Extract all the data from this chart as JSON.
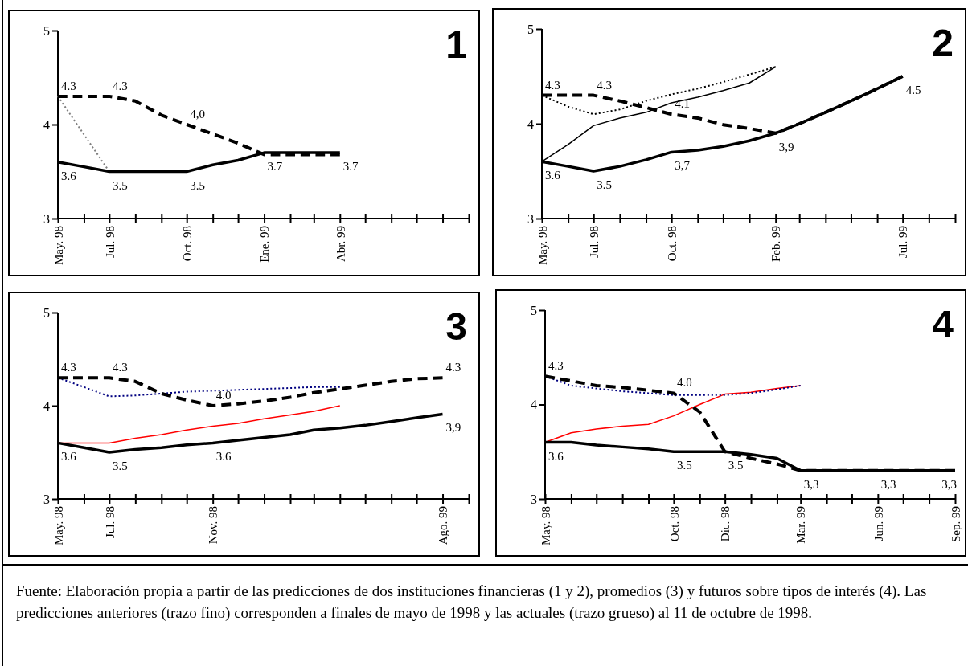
{
  "chart_data": [
    {
      "type": "line",
      "title": "1",
      "xlim": [
        "1998-05",
        "1999-09"
      ],
      "ylim": [
        3,
        5
      ],
      "yticks": [
        3,
        4,
        5
      ],
      "xticks": [
        {
          "value": "1998-05",
          "label": "May. 98"
        },
        {
          "value": "1998-06",
          "label": null
        },
        {
          "value": "1998-07",
          "label": "Jul. 98"
        },
        {
          "value": "1998-08",
          "label": null
        },
        {
          "value": "1998-09",
          "label": null
        },
        {
          "value": "1998-10",
          "label": "Oct. 98"
        },
        {
          "value": "1998-11",
          "label": null
        },
        {
          "value": "1998-12",
          "label": null
        },
        {
          "value": "1999-01",
          "label": "Ene. 99"
        },
        {
          "value": "1999-02",
          "label": null
        },
        {
          "value": "1999-03",
          "label": null
        },
        {
          "value": "1999-04",
          "label": "Abr. 99"
        },
        {
          "value": "1999-05",
          "label": null
        },
        {
          "value": "1999-06",
          "label": null
        },
        {
          "value": "1999-07",
          "label": null
        },
        {
          "value": "1999-08",
          "label": null
        },
        {
          "value": "1999-09",
          "label": null
        }
      ],
      "grid": false,
      "marker": "none",
      "series": [
        {
          "color": "#808080",
          "line_style": "dotted",
          "x": [
            "1998-05",
            "1998-07"
          ],
          "values": [
            4.3,
            3.5
          ]
        },
        {
          "color": "#000000",
          "line_style": "solid",
          "x": [
            "1998-05",
            "1998-06",
            "1998-07",
            "1998-08",
            "1998-09",
            "1998-10",
            "1998-11",
            "1998-12",
            "1999-01",
            "1999-02",
            "1999-03",
            "1999-04"
          ],
          "values": [
            3.6,
            3.55,
            3.5,
            3.5,
            3.5,
            3.5,
            3.57,
            3.62,
            3.7,
            3.7,
            3.7,
            3.7
          ]
        },
        {
          "color": "#000000",
          "line_style": "dashed",
          "x": [
            "1998-05",
            "1998-06",
            "1998-07",
            "1998-08",
            "1998-09",
            "1998-10",
            "1998-11",
            "1998-12",
            "1999-01",
            "1999-02",
            "1999-03",
            "1999-04"
          ],
          "values": [
            4.3,
            4.3,
            4.3,
            4.25,
            4.1,
            4.0,
            3.9,
            3.8,
            3.68,
            3.68,
            3.68,
            3.68
          ]
        }
      ],
      "annotations": [
        {
          "text": "4.3",
          "x": "1998-05",
          "y": 4.3
        },
        {
          "text": "4.3",
          "x": "1998-07",
          "y": 4.3
        },
        {
          "text": "4,0",
          "x": "1998-10",
          "y": 4.0
        },
        {
          "text": "3.6",
          "x": "1998-05",
          "y": 3.6
        },
        {
          "text": "3.5",
          "x": "1998-07",
          "y": 3.5
        },
        {
          "text": "3.5",
          "x": "1998-10",
          "y": 3.5
        },
        {
          "text": "3.7",
          "x": "1999-01",
          "y": 3.7
        },
        {
          "text": "3.7",
          "x": "1999-04",
          "y": 3.7
        }
      ]
    },
    {
      "type": "line",
      "title": "2",
      "xlim": [
        "1998-05",
        "1999-09"
      ],
      "ylim": [
        3,
        5
      ],
      "yticks": [
        3,
        4,
        5
      ],
      "xticks": [
        {
          "value": "1998-05",
          "label": "May. 98"
        },
        {
          "value": "1998-06",
          "label": null
        },
        {
          "value": "1998-07",
          "label": "Jul. 98"
        },
        {
          "value": "1998-08",
          "label": null
        },
        {
          "value": "1998-09",
          "label": null
        },
        {
          "value": "1998-10",
          "label": "Oct. 98"
        },
        {
          "value": "1998-11",
          "label": null
        },
        {
          "value": "1998-12",
          "label": null
        },
        {
          "value": "1999-01",
          "label": null
        },
        {
          "value": "1999-02",
          "label": "Feb. 99"
        },
        {
          "value": "1999-03",
          "label": null
        },
        {
          "value": "1999-04",
          "label": null
        },
        {
          "value": "1999-05",
          "label": null
        },
        {
          "value": "1999-06",
          "label": null
        },
        {
          "value": "1999-07",
          "label": "Jul. 99"
        },
        {
          "value": "1999-08",
          "label": null
        },
        {
          "value": "1999-09",
          "label": null
        }
      ],
      "grid": false,
      "marker": "none",
      "series": [
        {
          "color": "#000000",
          "line_style": "solid",
          "x": [
            "1998-05",
            "1998-06",
            "1998-07",
            "1998-08",
            "1998-09",
            "1998-10",
            "1998-11",
            "1998-12",
            "1999-01",
            "1999-02"
          ],
          "values": [
            3.6,
            3.78,
            3.98,
            4.06,
            4.12,
            4.22,
            4.28,
            4.35,
            4.43,
            4.6
          ]
        },
        {
          "color": "#000000",
          "line_style": "dotted",
          "x": [
            "1998-05",
            "1998-06",
            "1998-07",
            "1998-08",
            "1998-09",
            "1998-10",
            "1998-11",
            "1998-12",
            "1999-01",
            "1999-02"
          ],
          "values": [
            4.3,
            4.18,
            4.1,
            4.15,
            4.24,
            4.31,
            4.37,
            4.44,
            4.52,
            4.6
          ]
        },
        {
          "color": "#000000",
          "line_style": "solid",
          "x": [
            "1998-05",
            "1998-06",
            "1998-07",
            "1998-08",
            "1998-09",
            "1998-10",
            "1998-11",
            "1998-12",
            "1999-01",
            "1999-02",
            "1999-03",
            "1999-04",
            "1999-05",
            "1999-06",
            "1999-07"
          ],
          "values": [
            3.6,
            3.55,
            3.5,
            3.55,
            3.62,
            3.7,
            3.72,
            3.76,
            3.82,
            3.9,
            4.0,
            4.12,
            4.24,
            4.37,
            4.5
          ]
        },
        {
          "color": "#000000",
          "line_style": "dashed",
          "x": [
            "1998-05",
            "1998-06",
            "1998-07",
            "1998-08",
            "1998-09",
            "1998-10",
            "1998-11",
            "1998-12",
            "1999-01",
            "1999-02",
            "1999-03",
            "1999-04",
            "1999-05",
            "1999-06",
            "1999-07"
          ],
          "values": [
            4.3,
            4.3,
            4.3,
            4.24,
            4.17,
            4.1,
            4.06,
            3.99,
            3.95,
            3.9,
            4.0,
            4.12,
            4.24,
            4.37,
            4.5
          ]
        }
      ],
      "annotations": [
        {
          "text": "4.3",
          "x": "1998-05",
          "y": 4.3
        },
        {
          "text": "4.3",
          "x": "1998-07",
          "y": 4.3
        },
        {
          "text": "4.1",
          "x": "1998-10",
          "y": 4.1
        },
        {
          "text": "3.6",
          "x": "1998-05",
          "y": 3.6
        },
        {
          "text": "3.5",
          "x": "1998-07",
          "y": 3.5
        },
        {
          "text": "3,7",
          "x": "1998-10",
          "y": 3.7
        },
        {
          "text": "3,9",
          "x": "1999-02",
          "y": 3.9
        },
        {
          "text": "4.5",
          "x": "1999-07",
          "y": 4.5
        }
      ]
    },
    {
      "type": "line",
      "title": "3",
      "xlim": [
        "1998-05",
        "1999-09"
      ],
      "ylim": [
        3,
        5
      ],
      "yticks": [
        3,
        4,
        5
      ],
      "xticks": [
        {
          "value": "1998-05",
          "label": "May. 98"
        },
        {
          "value": "1998-06",
          "label": null
        },
        {
          "value": "1998-07",
          "label": "Jul. 98"
        },
        {
          "value": "1998-08",
          "label": null
        },
        {
          "value": "1998-09",
          "label": null
        },
        {
          "value": "1998-10",
          "label": null
        },
        {
          "value": "1998-11",
          "label": "Nov. 98"
        },
        {
          "value": "1998-12",
          "label": null
        },
        {
          "value": "1999-01",
          "label": null
        },
        {
          "value": "1999-02",
          "label": null
        },
        {
          "value": "1999-03",
          "label": null
        },
        {
          "value": "1999-04",
          "label": null
        },
        {
          "value": "1999-05",
          "label": null
        },
        {
          "value": "1999-06",
          "label": null
        },
        {
          "value": "1999-07",
          "label": null
        },
        {
          "value": "1999-08",
          "label": "Ago. 99"
        },
        {
          "value": "1999-09",
          "label": null
        }
      ],
      "grid": false,
      "marker": "none",
      "series": [
        {
          "color": "#ff0000",
          "line_style": "solid",
          "x": [
            "1998-05",
            "1998-06",
            "1998-07",
            "1998-08",
            "1998-09",
            "1998-10",
            "1998-11",
            "1998-12",
            "1999-01",
            "1999-02",
            "1999-03",
            "1999-04"
          ],
          "values": [
            3.6,
            3.6,
            3.6,
            3.65,
            3.69,
            3.74,
            3.78,
            3.81,
            3.86,
            3.9,
            3.94,
            4.0
          ]
        },
        {
          "color": "#000080",
          "line_style": "dotted",
          "x": [
            "1998-05",
            "1998-06",
            "1998-07",
            "1998-08",
            "1998-09",
            "1998-10",
            "1998-11",
            "1998-12",
            "1999-01",
            "1999-02",
            "1999-03",
            "1999-04"
          ],
          "values": [
            4.3,
            4.2,
            4.1,
            4.11,
            4.13,
            4.15,
            4.16,
            4.17,
            4.18,
            4.19,
            4.2,
            4.2
          ]
        },
        {
          "color": "#000000",
          "line_style": "solid",
          "x": [
            "1998-05",
            "1998-06",
            "1998-07",
            "1998-08",
            "1998-09",
            "1998-10",
            "1998-11",
            "1998-12",
            "1999-01",
            "1999-02",
            "1999-03",
            "1999-04",
            "1999-05",
            "1999-06",
            "1999-07",
            "1999-08"
          ],
          "values": [
            3.6,
            3.55,
            3.5,
            3.53,
            3.55,
            3.58,
            3.6,
            3.63,
            3.66,
            3.69,
            3.74,
            3.76,
            3.79,
            3.83,
            3.87,
            3.91
          ]
        },
        {
          "color": "#000000",
          "line_style": "dashed",
          "x": [
            "1998-05",
            "1998-06",
            "1998-07",
            "1998-08",
            "1998-09",
            "1998-10",
            "1998-11",
            "1998-12",
            "1999-01",
            "1999-02",
            "1999-03",
            "1999-04",
            "1999-05",
            "1999-06",
            "1999-07",
            "1999-08"
          ],
          "values": [
            4.3,
            4.3,
            4.3,
            4.26,
            4.13,
            4.06,
            4.0,
            4.02,
            4.05,
            4.09,
            4.14,
            4.18,
            4.22,
            4.26,
            4.29,
            4.3
          ]
        }
      ],
      "annotations": [
        {
          "text": "4.3",
          "x": "1998-05",
          "y": 4.3
        },
        {
          "text": "4.3",
          "x": "1998-07",
          "y": 4.3
        },
        {
          "text": "4.0",
          "x": "1998-11",
          "y": 4.0
        },
        {
          "text": "4.3",
          "x": "1999-08",
          "y": 4.3
        },
        {
          "text": "3.6",
          "x": "1998-05",
          "y": 3.6
        },
        {
          "text": "3.5",
          "x": "1998-07",
          "y": 3.5
        },
        {
          "text": "3.6",
          "x": "1998-11",
          "y": 3.6
        },
        {
          "text": "3,9",
          "x": "1999-08",
          "y": 3.91
        }
      ]
    },
    {
      "type": "line",
      "title": "4",
      "xlim": [
        "1998-05",
        "1999-09"
      ],
      "ylim": [
        3,
        5
      ],
      "yticks": [
        3,
        4,
        5
      ],
      "xticks": [
        {
          "value": "1998-05",
          "label": "May. 98"
        },
        {
          "value": "1998-06",
          "label": null
        },
        {
          "value": "1998-07",
          "label": null
        },
        {
          "value": "1998-08",
          "label": null
        },
        {
          "value": "1998-09",
          "label": null
        },
        {
          "value": "1998-10",
          "label": "Oct. 98"
        },
        {
          "value": "1998-11",
          "label": null
        },
        {
          "value": "1998-12",
          "label": "Dic. 98"
        },
        {
          "value": "1999-01",
          "label": null
        },
        {
          "value": "1999-02",
          "label": null
        },
        {
          "value": "1999-03",
          "label": "Mar. 99"
        },
        {
          "value": "1999-04",
          "label": null
        },
        {
          "value": "1999-05",
          "label": null
        },
        {
          "value": "1999-06",
          "label": "Jun. 99"
        },
        {
          "value": "1999-07",
          "label": null
        },
        {
          "value": "1999-08",
          "label": null
        },
        {
          "value": "1999-09",
          "label": "Sep. 99"
        }
      ],
      "grid": false,
      "marker": "none",
      "series": [
        {
          "color": "#ff0000",
          "line_style": "solid",
          "x": [
            "1998-05",
            "1998-06",
            "1998-07",
            "1998-08",
            "1998-09",
            "1998-10",
            "1998-11",
            "1998-12",
            "1999-01",
            "1999-02",
            "1999-03"
          ],
          "values": [
            3.6,
            3.7,
            3.74,
            3.77,
            3.79,
            3.88,
            4.0,
            4.11,
            4.13,
            4.17,
            4.2
          ]
        },
        {
          "color": "#000080",
          "line_style": "dotted",
          "x": [
            "1998-05",
            "1998-06",
            "1998-07",
            "1998-08",
            "1998-09",
            "1998-10",
            "1998-11",
            "1998-12",
            "1999-01",
            "1999-02",
            "1999-03"
          ],
          "values": [
            4.3,
            4.2,
            4.17,
            4.14,
            4.12,
            4.1,
            4.1,
            4.1,
            4.12,
            4.16,
            4.2
          ]
        },
        {
          "color": "#000000",
          "line_style": "solid",
          "x": [
            "1998-05",
            "1998-06",
            "1998-07",
            "1998-08",
            "1998-09",
            "1998-10",
            "1998-11",
            "1998-12",
            "1999-01",
            "1999-02",
            "1999-03",
            "1999-04",
            "1999-05",
            "1999-06",
            "1999-07",
            "1999-08",
            "1999-09"
          ],
          "values": [
            3.6,
            3.6,
            3.57,
            3.55,
            3.53,
            3.5,
            3.5,
            3.5,
            3.47,
            3.43,
            3.3,
            3.3,
            3.3,
            3.3,
            3.3,
            3.3,
            3.3
          ]
        },
        {
          "color": "#000000",
          "line_style": "dashed",
          "x": [
            "1998-05",
            "1998-06",
            "1998-07",
            "1998-08",
            "1998-09",
            "1998-10",
            "1998-11",
            "1998-12",
            "1999-01",
            "1999-02",
            "1999-03",
            "1999-04",
            "1999-05",
            "1999-06",
            "1999-07",
            "1999-08",
            "1999-09"
          ],
          "values": [
            4.3,
            4.25,
            4.2,
            4.18,
            4.15,
            4.12,
            3.92,
            3.5,
            3.43,
            3.37,
            3.3,
            3.3,
            3.3,
            3.3,
            3.3,
            3.3,
            3.3
          ]
        }
      ],
      "annotations": [
        {
          "text": "4.3",
          "x": "1998-05",
          "y": 4.3
        },
        {
          "text": "4.0",
          "x": "1998-10",
          "y": 4.12
        },
        {
          "text": "3.6",
          "x": "1998-05",
          "y": 3.6
        },
        {
          "text": "3.5",
          "x": "1998-10",
          "y": 3.5
        },
        {
          "text": "3.5",
          "x": "1998-12",
          "y": 3.5
        },
        {
          "text": "3,3",
          "x": "1999-03",
          "y": 3.3
        },
        {
          "text": "3,3",
          "x": "1999-06",
          "y": 3.3
        },
        {
          "text": "3,3",
          "x": "1999-09",
          "y": 3.3
        },
        "Fuente: Elaboración propia a partir de las predicciones de dos instituciones financieras (1 y 2), promedios (3) y futuros sobre tipos de interés (4). Las predicciones anteriores (trazo fino) corresponden a finales de mayo de 1998 y las actuales (trazo grueso) al 11 de octubre de 1998."
      ]
    }
  ]
}
